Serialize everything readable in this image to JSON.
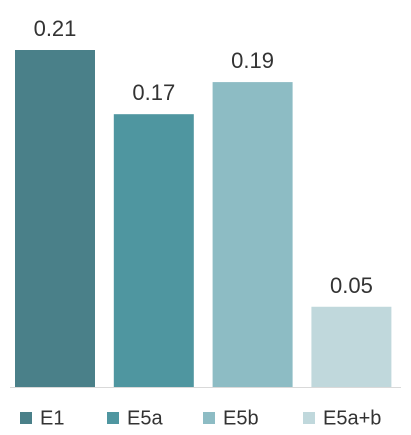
{
  "chart_data": {
    "type": "bar",
    "series": [
      {
        "name": "E1",
        "color": "#4a8089",
        "values": [
          0.21
        ]
      },
      {
        "name": "E5a",
        "color": "#4f96a0",
        "values": [
          0.17
        ]
      },
      {
        "name": "E5b",
        "color": "#8dbcc4",
        "values": [
          0.19
        ]
      },
      {
        "name": "E5a+b",
        "color": "#c0d8dc",
        "values": [
          0.05
        ]
      }
    ]
  }
}
